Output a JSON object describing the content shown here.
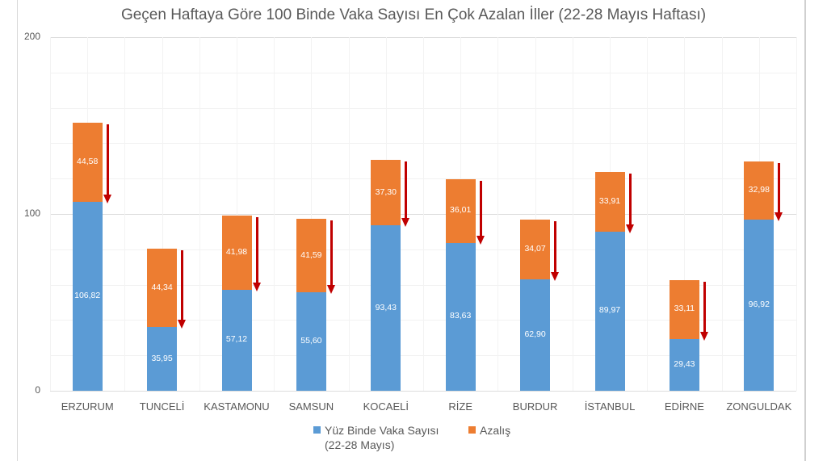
{
  "title": "Geçen Haftaya Göre 100 Binde Vaka Sayısı En Çok Azalan İller (22-28 Mayıs Haftası)",
  "y_axis": {
    "ticks": [
      "200",
      "100",
      "0"
    ]
  },
  "legend": {
    "series_0_line1": "Yüz Binde Vaka Sayısı",
    "series_0_line2": "(22-28 Mayıs)",
    "series_1": "Azalış"
  },
  "colors": {
    "blue": "#5b9bd5",
    "orange": "#ed7d31",
    "arrow": "#c00000"
  },
  "chart_data": {
    "type": "bar",
    "stacked": true,
    "title": "Geçen Haftaya Göre 100 Binde Vaka Sayısı En Çok Azalan İller (22-28 Mayıs Haftası)",
    "xlabel": "",
    "ylabel": "",
    "ylim": [
      0,
      200
    ],
    "yticks": [
      0,
      100,
      200
    ],
    "grid": true,
    "legend_position": "bottom",
    "categories": [
      "ERZURUM",
      "TUNCELİ",
      "KASTAMONU",
      "SAMSUN",
      "KOCAELİ",
      "RİZE",
      "BURDUR",
      "İSTANBUL",
      "EDİRNE",
      "ZONGULDAK"
    ],
    "series": [
      {
        "name": "Yüz Binde Vaka Sayısı (22-28 Mayıs)",
        "color": "#5b9bd5",
        "values": [
          106.82,
          35.95,
          57.12,
          55.6,
          93.43,
          83.63,
          62.9,
          89.97,
          29.43,
          96.92
        ],
        "labels": [
          "106,82",
          "35,95",
          "57,12",
          "55,60",
          "93,43",
          "83,63",
          "62,90",
          "89,97",
          "29,43",
          "96,92"
        ]
      },
      {
        "name": "Azalış",
        "color": "#ed7d31",
        "values": [
          44.58,
          44.34,
          41.98,
          41.59,
          37.3,
          36.01,
          34.07,
          33.91,
          33.11,
          32.98
        ],
        "labels": [
          "44,58",
          "44,34",
          "41,98",
          "41,59",
          "37,30",
          "36,01",
          "34,07",
          "33,91",
          "33,11",
          "32,98"
        ]
      }
    ],
    "annotations": "Red downward arrow beside each orange segment indicating decrease"
  }
}
